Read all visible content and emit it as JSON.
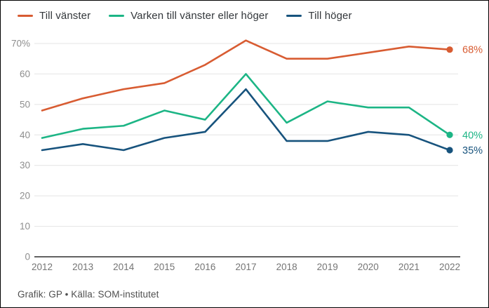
{
  "chart_data": {
    "type": "line",
    "x": [
      2012,
      2013,
      2014,
      2015,
      2016,
      2017,
      2018,
      2019,
      2020,
      2021,
      2022
    ],
    "series": [
      {
        "name": "Till vänster",
        "color": "#d85c32",
        "values": [
          48,
          52,
          55,
          57,
          63,
          71,
          65,
          65,
          67,
          69,
          68
        ],
        "end_label": "68%"
      },
      {
        "name": "Varken till vänster eller höger",
        "color": "#1cb585",
        "values": [
          39,
          42,
          43,
          48,
          45,
          60,
          44,
          51,
          49,
          49,
          40
        ],
        "end_label": "40%"
      },
      {
        "name": "Till höger",
        "color": "#17537d",
        "values": [
          35,
          37,
          35,
          39,
          41,
          55,
          38,
          38,
          41,
          40,
          35
        ],
        "end_label": "35%"
      }
    ],
    "title": "",
    "xlabel": "",
    "ylabel": "",
    "ylim": [
      0,
      70
    ],
    "ytick_step": 10,
    "ytick_labels": [
      "0",
      "10",
      "20",
      "30",
      "40",
      "50",
      "60",
      "70%"
    ],
    "grid": true,
    "legend_position": "top"
  },
  "footer": {
    "credit": "Grafik: GP • Källa: SOM-institutet"
  },
  "colors": {
    "background": "#ffffff",
    "grid_line": "#e4e4e4",
    "axis_line": "#2f2f2f",
    "ytick_text": "#8e8e8e",
    "xtick_text": "#757575",
    "legend_text": "#33373b",
    "footer_text": "#4f4f4f"
  }
}
